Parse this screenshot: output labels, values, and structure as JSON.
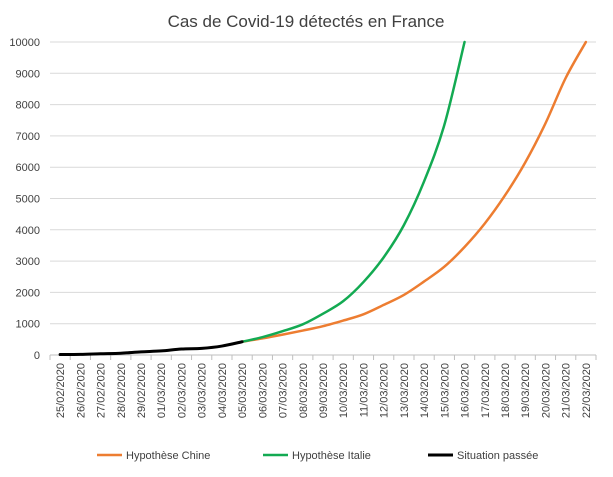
{
  "chart_data": {
    "type": "line",
    "title": "Cas de Covid-19 détectés en France",
    "xlabel": "",
    "ylabel": "",
    "ylim": [
      0,
      10000
    ],
    "y_ticks": [
      0,
      1000,
      2000,
      3000,
      4000,
      5000,
      6000,
      7000,
      8000,
      9000,
      10000
    ],
    "grid": "horizontal",
    "legend_position": "bottom",
    "categories": [
      "25/02/2020",
      "26/02/2020",
      "27/02/2020",
      "28/02/2020",
      "29/02/2020",
      "01/03/2020",
      "02/03/2020",
      "03/03/2020",
      "04/03/2020",
      "05/03/2020",
      "06/03/2020",
      "07/03/2020",
      "08/03/2020",
      "09/03/2020",
      "10/03/2020",
      "11/03/2020",
      "12/03/2020",
      "13/03/2020",
      "14/03/2020",
      "15/03/2020",
      "16/03/2020",
      "17/03/2020",
      "18/03/2020",
      "19/03/2020",
      "20/03/2020",
      "21/03/2020",
      "22/03/2020"
    ],
    "series": [
      {
        "name": "Hypothèse Chine",
        "color": "#ED7D31",
        "values": [
          null,
          null,
          null,
          null,
          null,
          null,
          null,
          null,
          null,
          423,
          530,
          650,
          780,
          920,
          1100,
          1300,
          1600,
          1920,
          2350,
          2820,
          3450,
          4200,
          5100,
          6150,
          7400,
          8850,
          10000
        ]
      },
      {
        "name": "Hypothèse Italie",
        "color": "#13AA52",
        "values": [
          null,
          null,
          null,
          null,
          null,
          null,
          null,
          null,
          null,
          423,
          570,
          760,
          980,
          1320,
          1720,
          2330,
          3120,
          4150,
          5550,
          7350,
          10000,
          null,
          null,
          null,
          null,
          null,
          null
        ]
      },
      {
        "name": "Situation passée",
        "color": "#000000",
        "values": [
          14,
          18,
          38,
          57,
          100,
          130,
          191,
          212,
          285,
          423,
          null,
          null,
          null,
          null,
          null,
          null,
          null,
          null,
          null,
          null,
          null,
          null,
          null,
          null,
          null,
          null,
          null
        ]
      }
    ]
  }
}
